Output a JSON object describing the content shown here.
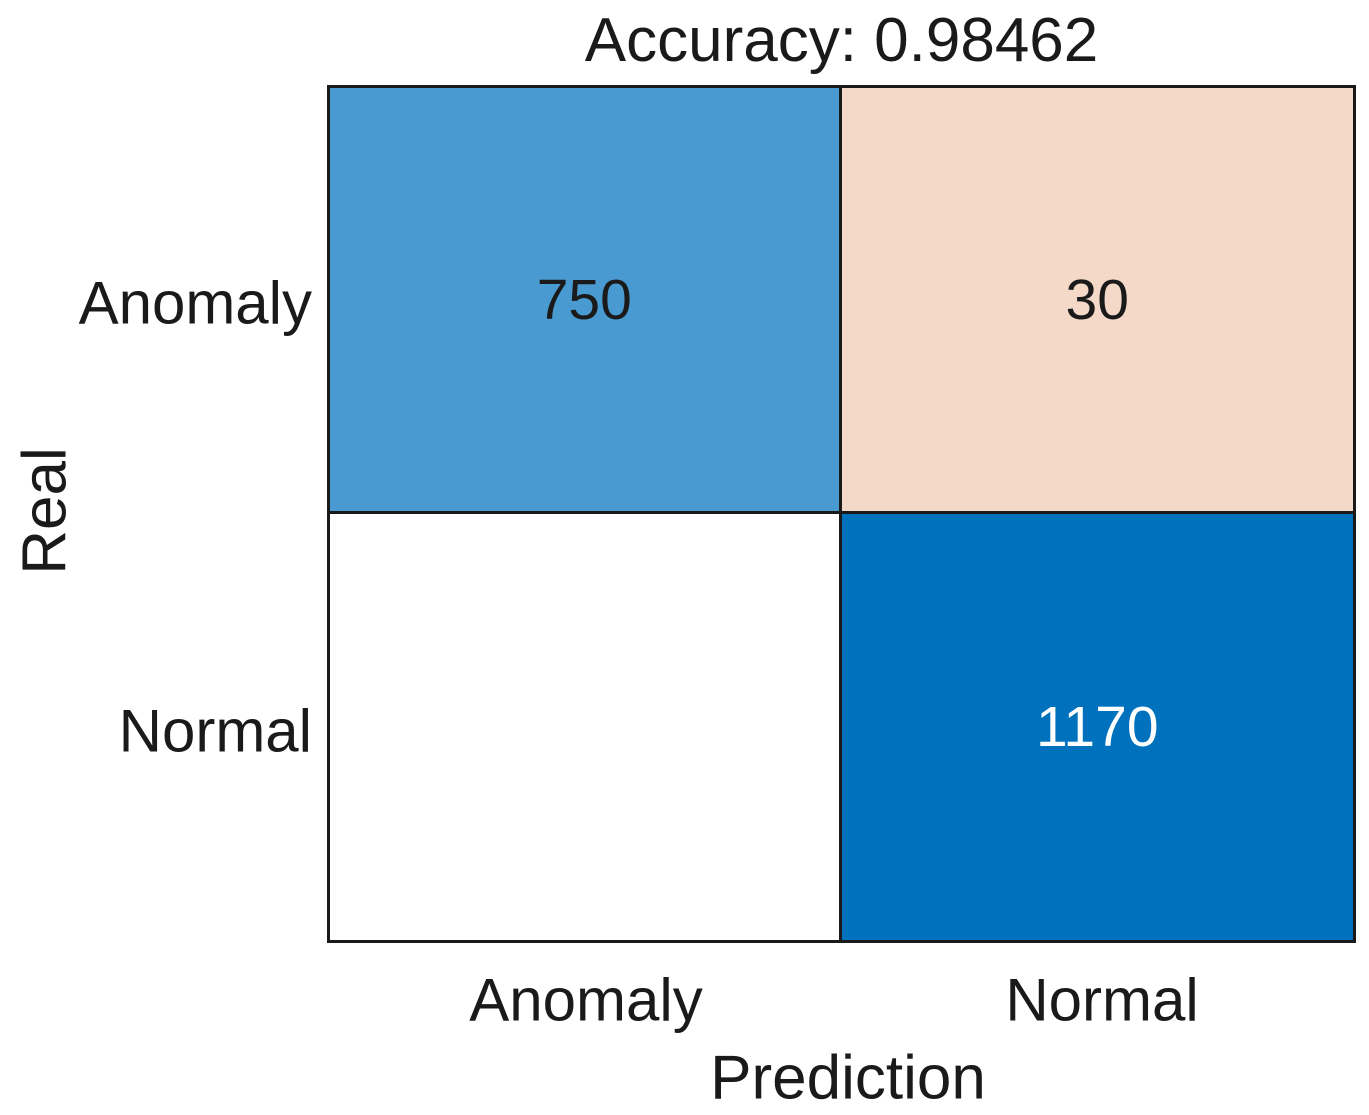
{
  "chart_data": {
    "type": "heatmap",
    "subtype": "confusion_matrix",
    "title": "Accuracy: 0.98462",
    "accuracy": 0.98462,
    "xlabel": "Prediction",
    "ylabel": "Real",
    "x_categories": [
      "Anomaly",
      "Normal"
    ],
    "y_categories": [
      "Anomaly",
      "Normal"
    ],
    "values": [
      [
        750,
        30
      ],
      [
        0,
        1170
      ]
    ],
    "cells": [
      {
        "row": "Anomaly",
        "col": "Anomaly",
        "label": "750",
        "bg": "#4A9AD2",
        "fg": "#1A1A1A"
      },
      {
        "row": "Anomaly",
        "col": "Normal",
        "label": "30",
        "bg": "#F5D9C8",
        "fg": "#1A1A1A"
      },
      {
        "row": "Normal",
        "col": "Anomaly",
        "label": "",
        "bg": "#FFFFFF",
        "fg": "#1A1A1A"
      },
      {
        "row": "Normal",
        "col": "Normal",
        "label": "1170",
        "bg": "#0072BD",
        "fg": "#FFFFFF"
      }
    ],
    "colors": {
      "axis_line": "#1A1A1A",
      "text": "#1A1A1A",
      "background": "#FFFFFF"
    },
    "layout_hints": {
      "grid": "2x2",
      "legend": "none",
      "title_position": "top-center"
    }
  }
}
